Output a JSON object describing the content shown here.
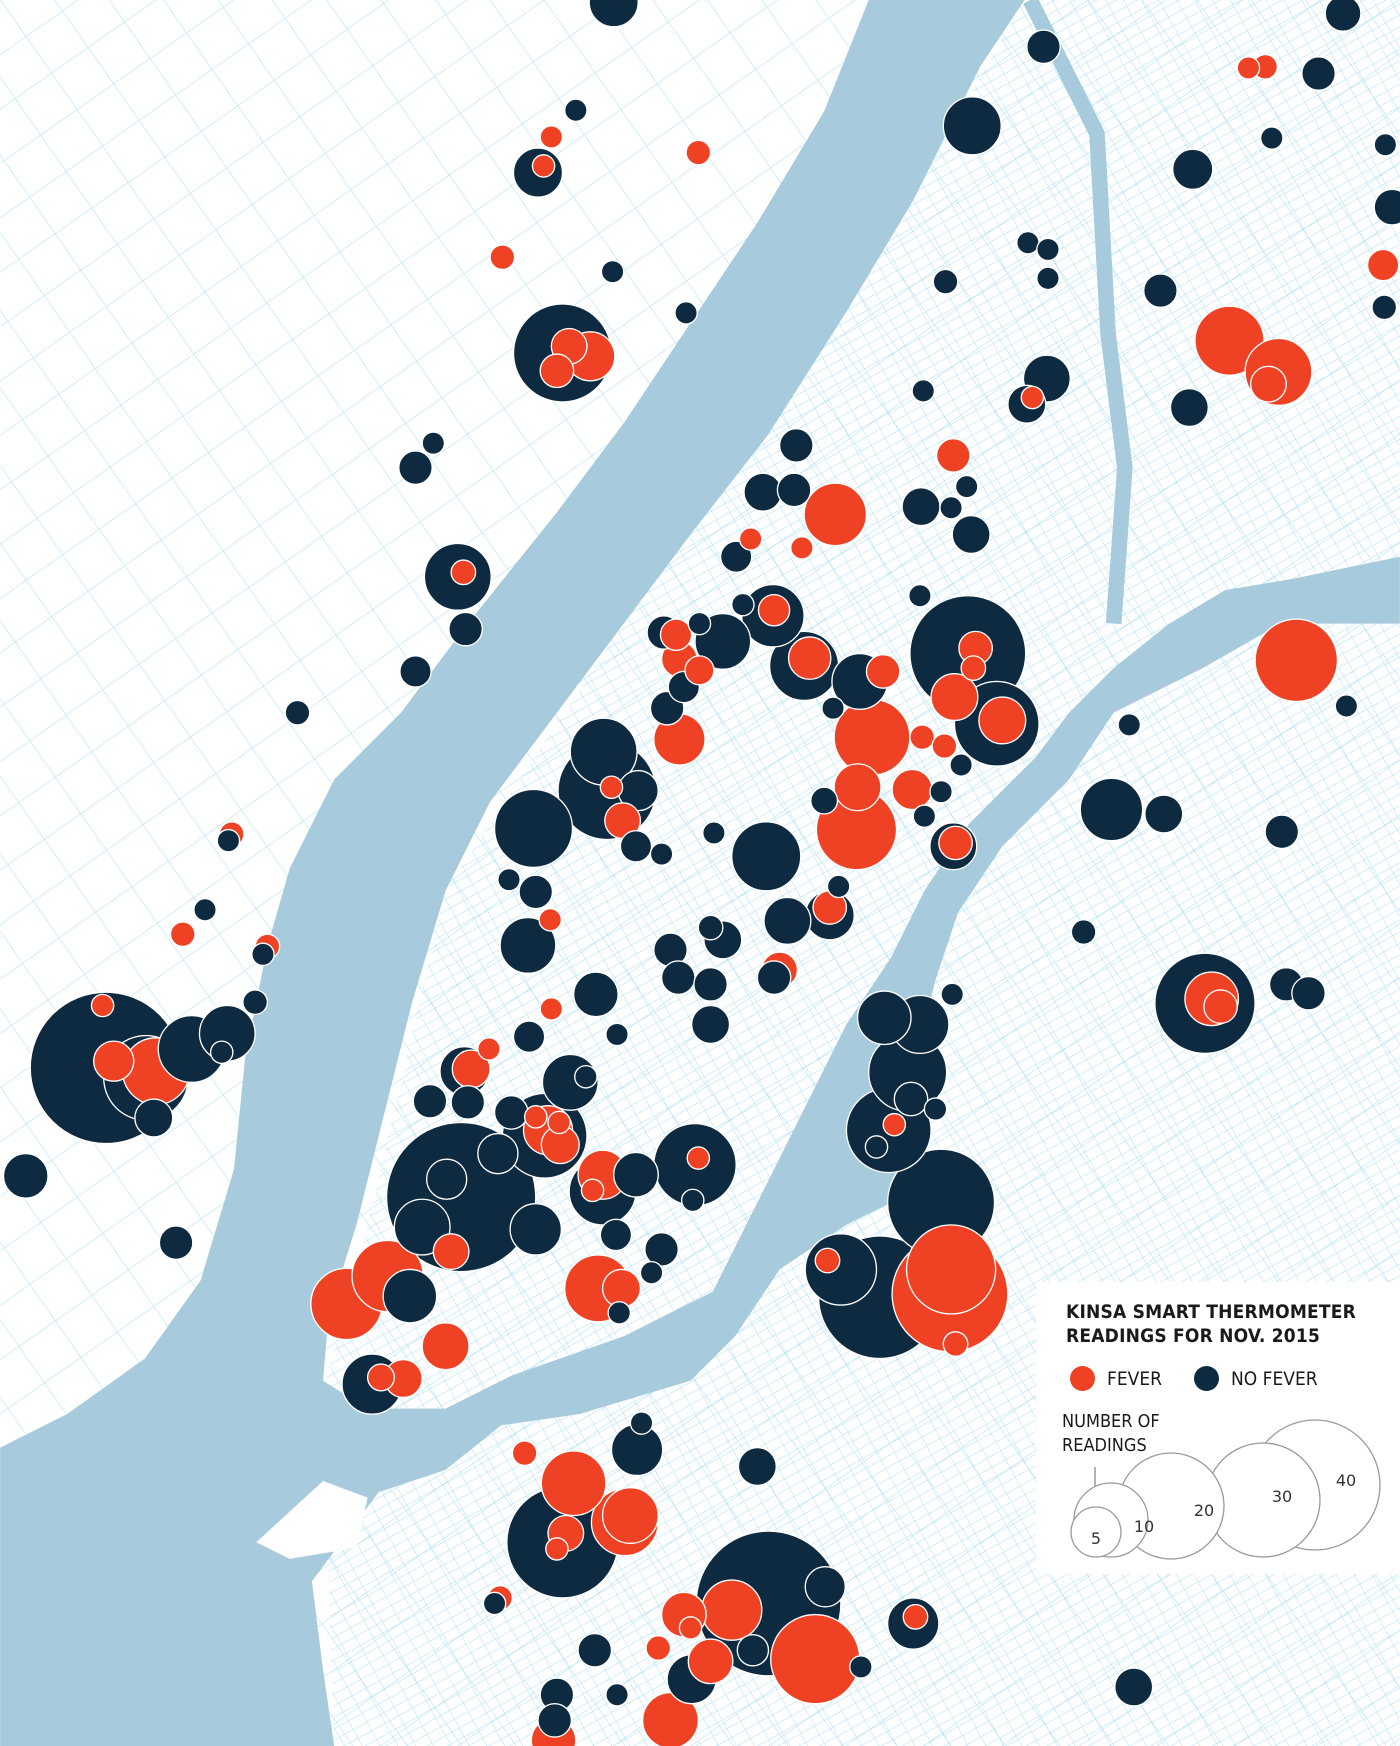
{
  "legend": {
    "title_line1": "KINSA SMART THERMOMETER",
    "title_line2": "READINGS FOR NOV. 2015",
    "fever_label": "FEVER",
    "no_fever_label": "NO FEVER",
    "size_title_line1": "NUMBER OF",
    "size_title_line2": "READINGS",
    "sizes": [
      "5",
      "10",
      "20",
      "30",
      "40"
    ]
  },
  "colors": {
    "fever": "#ef4123",
    "no_fever": "#0d2a40",
    "water": "#a7cbdc",
    "streets": "#a6def6",
    "land": "#ffffff"
  }
}
